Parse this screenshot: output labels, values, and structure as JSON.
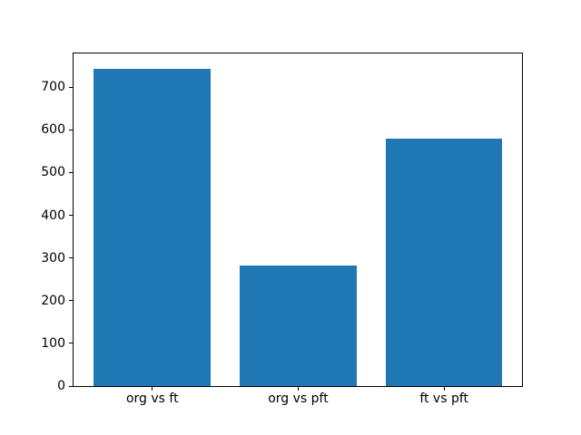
{
  "figure": {
    "background_color": "#ffffff",
    "text_color": "#000000"
  },
  "chart_data": {
    "type": "bar",
    "categories": [
      "org vs ft",
      "org vs pft",
      "ft vs pft"
    ],
    "values": [
      744,
      283,
      579
    ],
    "title": "",
    "xlabel": "",
    "ylabel": "",
    "ylim": [
      0,
      779
    ],
    "xlim": [
      -0.54,
      2.534
    ],
    "yticks": [
      0,
      100,
      200,
      300,
      400,
      500,
      600,
      700
    ],
    "bar_color": "#1f77b4",
    "bar_width": 0.8,
    "grid": false,
    "legend": false
  }
}
